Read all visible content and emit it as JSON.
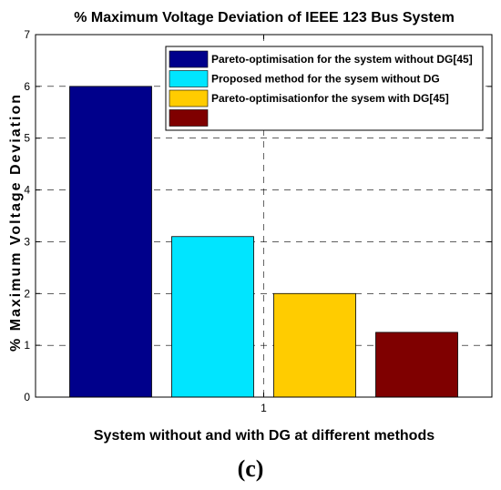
{
  "chart_data": {
    "type": "bar",
    "title": "% Maximum Voltage Deviation of IEEE 123 Bus System",
    "xlabel": "System without and with DG at different methods",
    "ylabel": "% Maximum Voltage Deviation",
    "categories": [
      "1"
    ],
    "ylim": [
      0,
      7
    ],
    "yticks": [
      "0",
      "1",
      "2",
      "3",
      "4",
      "5",
      "6",
      "7"
    ],
    "grid": true,
    "legend_position": "top-right",
    "series": [
      {
        "name": "Pareto-optimisation for the system without DG[45]",
        "values": [
          6.0
        ],
        "color": "#00008B"
      },
      {
        "name": "Proposed method for the sysem without DG",
        "values": [
          3.1
        ],
        "color": "#00E5FF"
      },
      {
        "name": "Pareto-optimisationfor the sysem with DG[45]",
        "values": [
          2.0
        ],
        "color": "#FFCC00"
      },
      {
        "name": "",
        "values": [
          1.25
        ],
        "color": "#7F0000"
      }
    ]
  },
  "caption": "(c)"
}
